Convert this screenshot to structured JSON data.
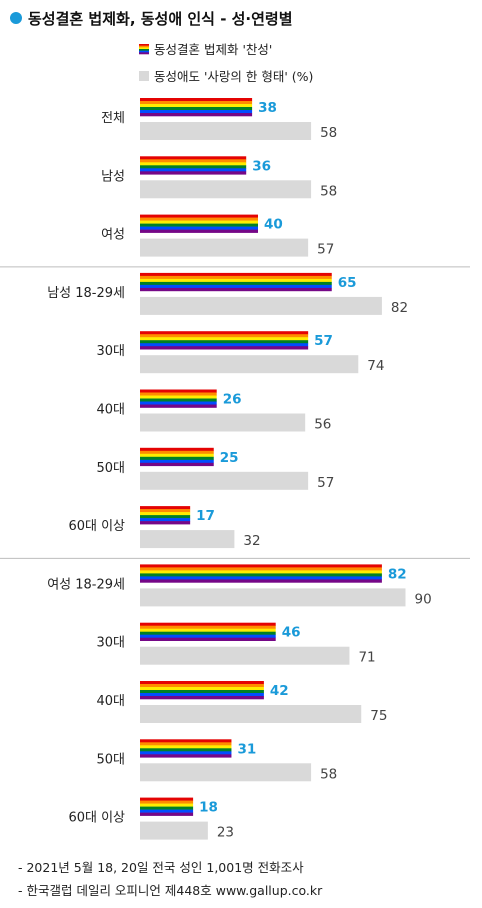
{
  "title": "동성결혼 법제화, 동성애 인식 - 성·연령별",
  "colors": {
    "title_dot": "#1a9ad9",
    "value_rainbow": "#1a9ad9",
    "value_gray": "#444444",
    "gray_bar": "#d9d9d9",
    "rainbow_stripes": [
      "#e40303",
      "#ff8c00",
      "#ffed00",
      "#008026",
      "#004dff",
      "#750787"
    ]
  },
  "chart_data": {
    "type": "bar",
    "orientation": "horizontal",
    "legend": [
      "동성결혼 법제화 '찬성'",
      "동성애도 '사랑의 한 형태' (%)"
    ],
    "categories": [
      "전체",
      "남성",
      "여성",
      "남성 18-29세",
      "30대",
      "40대",
      "50대",
      "60대 이상",
      "여성 18-29세",
      "30대",
      "40대",
      "50대",
      "60대 이상"
    ],
    "series": [
      {
        "name": "동성결혼 법제화 '찬성'",
        "values": [
          38,
          36,
          40,
          65,
          57,
          26,
          25,
          17,
          82,
          46,
          42,
          31,
          18
        ]
      },
      {
        "name": "동성애도 '사랑의 한 형태' (%)",
        "values": [
          58,
          58,
          57,
          82,
          74,
          56,
          57,
          32,
          90,
          71,
          75,
          58,
          23
        ]
      }
    ],
    "xlim": [
      0,
      100
    ],
    "legend_position": "top"
  },
  "footnotes": [
    "- 2021년 5월 18, 20일 전국 성인 1,001명 전화조사",
    "- 한국갤럽 데일리 오피니언 제448호 www.gallup.co.kr"
  ]
}
